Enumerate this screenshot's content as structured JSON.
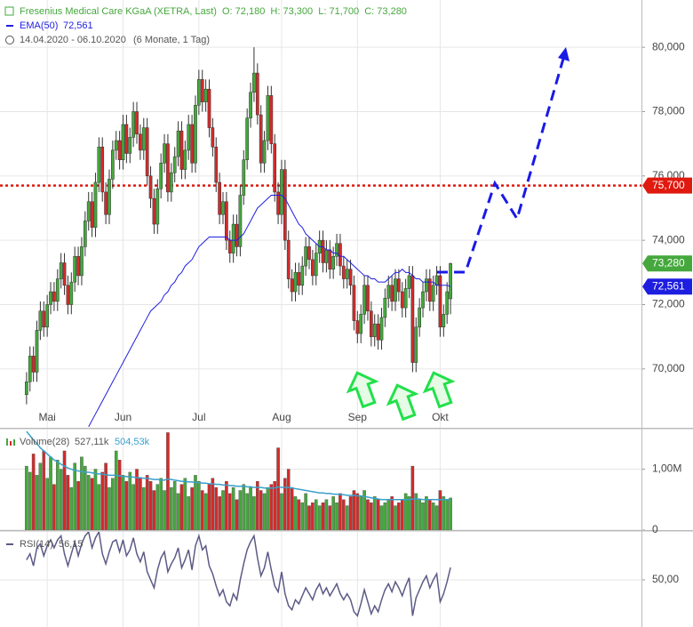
{
  "chart_data": [
    {
      "type": "candlestick",
      "title": "Fresenius Medical Care KGaA (XETRA, Last)",
      "ohlc_summary": "O: 72,180  H: 73,300  L: 71,700  C: 73,280",
      "period": "14.04.2020 - 06.10.2020",
      "period_note": "(6 Monate, 1 Tag)",
      "xlim": [
        -7.7,
        178.4
      ],
      "xticks": [
        {
          "value": 6,
          "label": "Mai"
        },
        {
          "value": 28,
          "label": "Jun"
        },
        {
          "value": 50,
          "label": "Jul"
        },
        {
          "value": 74,
          "label": "Aug"
        },
        {
          "value": 96,
          "label": "Sep"
        },
        {
          "value": 120,
          "label": "Okt"
        }
      ],
      "ylim": [
        68.17,
        81.47
      ],
      "yticks": [
        {
          "value": 70,
          "label": "70,000"
        },
        {
          "value": 72,
          "label": "72,000"
        },
        {
          "value": 74,
          "label": "74,000"
        },
        {
          "value": 76,
          "label": "76,000"
        },
        {
          "value": 78,
          "label": "78,000"
        },
        {
          "value": 80,
          "label": "80,000"
        }
      ],
      "grid": true,
      "up_color": "#45a83c",
      "down_color": "#d42a2a",
      "close_label": "73,280",
      "open": [
        69.2,
        69.6,
        70.4,
        69.9,
        71.2,
        71.8,
        71.3,
        72.0,
        72.4,
        72.1,
        72.8,
        73.3,
        72.6,
        72.0,
        72.7,
        73.5,
        72.9,
        73.8,
        74.6,
        75.2,
        74.4,
        75.8,
        76.9,
        75.5,
        74.8,
        75.9,
        76.8,
        77.1,
        76.5,
        77.6,
        76.7,
        77.2,
        78.0,
        77.3,
        76.8,
        77.5,
        76.0,
        75.3,
        74.5,
        75.6,
        76.4,
        77.0,
        75.5,
        76.1,
        76.6,
        77.4,
        76.2,
        76.8,
        77.6,
        76.4,
        78.2,
        79.0,
        78.3,
        78.7,
        77.5,
        76.9,
        75.8,
        74.8,
        75.2,
        74.0,
        73.6,
        74.5,
        73.8,
        75.4,
        76.5,
        77.8,
        78.6,
        79.2,
        77.9,
        76.4,
        77.1,
        78.5,
        77.0,
        75.5,
        74.8,
        76.2,
        74.0,
        72.8,
        72.4,
        73.0,
        72.6,
        73.2,
        73.8,
        73.4,
        72.9,
        73.6,
        74.0,
        73.3,
        73.7,
        73.1,
        73.5,
        73.9,
        73.2,
        72.8,
        73.1,
        72.6,
        71.5,
        71.1,
        71.7,
        72.6,
        71.8,
        71.0,
        71.4,
        70.9,
        71.6,
        72.2,
        72.6,
        72.1,
        72.8,
        72.4,
        71.9,
        72.5,
        72.9,
        70.2,
        71.3,
        71.9,
        72.4,
        72.8,
        72.1,
        72.6,
        72.9,
        71.3,
        71.7,
        72.18
      ],
      "high": [
        69.9,
        70.7,
        70.7,
        71.5,
        72.1,
        72.1,
        72.3,
        72.7,
        72.7,
        73.1,
        73.6,
        73.6,
        72.9,
        73.0,
        73.8,
        73.8,
        74.1,
        74.9,
        75.5,
        75.5,
        76.1,
        77.2,
        77.2,
        75.8,
        76.2,
        77.1,
        77.4,
        77.4,
        77.9,
        77.9,
        77.5,
        78.3,
        78.3,
        77.6,
        77.8,
        77.8,
        76.3,
        75.6,
        75.9,
        76.7,
        77.3,
        77.3,
        76.4,
        76.9,
        77.7,
        77.7,
        77.1,
        77.9,
        77.9,
        78.5,
        79.3,
        79.3,
        79.0,
        79.0,
        77.8,
        77.2,
        76.1,
        75.5,
        75.5,
        74.3,
        74.8,
        74.8,
        75.7,
        76.8,
        78.1,
        78.9,
        80.0,
        79.5,
        78.2,
        77.4,
        78.8,
        78.8,
        77.3,
        75.8,
        76.5,
        76.5,
        74.3,
        73.1,
        73.3,
        73.3,
        73.5,
        74.1,
        74.1,
        73.7,
        73.9,
        74.3,
        74.3,
        74.0,
        74.0,
        73.8,
        74.2,
        74.2,
        73.5,
        73.4,
        73.4,
        72.9,
        71.8,
        72.0,
        72.9,
        72.9,
        72.1,
        71.7,
        71.7,
        71.9,
        72.5,
        72.9,
        72.9,
        73.1,
        73.1,
        72.7,
        72.8,
        73.2,
        73.2,
        71.6,
        72.2,
        72.7,
        73.1,
        73.1,
        72.9,
        73.2,
        73.2,
        72.0,
        72.7,
        73.3
      ],
      "low": [
        68.9,
        69.3,
        69.6,
        69.6,
        70.9,
        71.0,
        71.0,
        71.7,
        71.8,
        71.8,
        72.5,
        72.3,
        71.7,
        71.7,
        72.4,
        72.6,
        72.6,
        73.5,
        74.3,
        74.1,
        74.1,
        75.5,
        75.2,
        74.5,
        74.5,
        75.6,
        76.5,
        76.2,
        76.2,
        76.4,
        76.4,
        76.9,
        77.0,
        76.5,
        76.5,
        75.7,
        75.0,
        74.2,
        74.2,
        75.3,
        76.1,
        75.2,
        75.2,
        75.8,
        76.3,
        75.9,
        75.9,
        76.5,
        76.1,
        76.1,
        77.9,
        78.0,
        78.0,
        77.2,
        76.6,
        75.5,
        74.5,
        74.5,
        73.7,
        73.3,
        73.3,
        73.5,
        73.5,
        75.1,
        76.2,
        77.5,
        78.3,
        77.6,
        76.1,
        76.1,
        76.8,
        76.7,
        75.2,
        74.5,
        74.5,
        73.7,
        72.5,
        72.1,
        72.1,
        72.3,
        72.3,
        72.9,
        73.1,
        72.6,
        72.6,
        73.3,
        73.0,
        73.0,
        72.8,
        72.8,
        73.2,
        72.9,
        72.5,
        72.5,
        72.3,
        71.2,
        70.8,
        70.8,
        71.4,
        71.5,
        70.7,
        70.7,
        70.6,
        70.6,
        71.3,
        71.9,
        71.8,
        71.8,
        72.1,
        71.6,
        71.6,
        72.2,
        69.9,
        69.9,
        71.0,
        71.6,
        72.1,
        71.8,
        71.8,
        72.3,
        71.0,
        71.0,
        71.4,
        71.7
      ],
      "close": [
        69.6,
        70.4,
        69.9,
        71.2,
        71.8,
        71.3,
        72.0,
        72.4,
        72.1,
        72.8,
        73.3,
        72.6,
        72.0,
        72.7,
        73.5,
        72.9,
        73.8,
        74.6,
        75.2,
        74.4,
        75.8,
        76.9,
        75.5,
        74.8,
        75.9,
        76.8,
        77.1,
        76.5,
        77.6,
        76.7,
        77.2,
        78.0,
        77.3,
        76.8,
        77.5,
        76.0,
        75.3,
        74.5,
        75.6,
        76.4,
        77.0,
        75.5,
        76.1,
        76.6,
        77.4,
        76.2,
        76.8,
        77.6,
        76.4,
        78.2,
        79.0,
        78.3,
        78.7,
        77.5,
        76.9,
        75.8,
        74.8,
        75.2,
        74.0,
        73.6,
        74.5,
        73.8,
        75.4,
        76.5,
        77.8,
        78.6,
        79.2,
        77.9,
        76.4,
        77.1,
        78.5,
        77.0,
        75.5,
        74.8,
        76.2,
        74.0,
        72.8,
        72.4,
        73.0,
        72.6,
        73.2,
        73.8,
        73.4,
        72.9,
        73.6,
        74.0,
        73.3,
        73.7,
        73.1,
        73.5,
        73.9,
        73.2,
        72.8,
        73.1,
        72.6,
        71.5,
        71.1,
        71.7,
        72.6,
        71.8,
        71.0,
        71.4,
        70.9,
        71.6,
        72.2,
        72.6,
        72.1,
        72.8,
        72.4,
        71.9,
        72.5,
        72.9,
        70.2,
        71.3,
        71.9,
        72.4,
        72.8,
        72.1,
        72.6,
        72.9,
        71.3,
        71.7,
        72.4,
        73.28
      ],
      "series": [
        {
          "name": "EMA(50)",
          "value_label": "72,561",
          "color": "#1e1ee0",
          "values": [
            null,
            null,
            null,
            null,
            null,
            null,
            null,
            null,
            null,
            null,
            null,
            null,
            null,
            null,
            null,
            null,
            null,
            null,
            68.2,
            68.4,
            68.6,
            68.8,
            69.0,
            69.2,
            69.4,
            69.6,
            69.8,
            70.0,
            70.2,
            70.4,
            70.6,
            70.8,
            71.0,
            71.2,
            71.4,
            71.6,
            71.8,
            71.9,
            72.0,
            72.1,
            72.3,
            72.4,
            72.6,
            72.7,
            72.9,
            73.0,
            73.2,
            73.3,
            73.4,
            73.6,
            73.8,
            73.9,
            74.0,
            74.1,
            74.1,
            74.1,
            74.1,
            74.1,
            74.1,
            74.0,
            74.0,
            74.0,
            74.1,
            74.2,
            74.4,
            74.6,
            74.8,
            75.0,
            75.1,
            75.2,
            75.3,
            75.4,
            75.4,
            75.4,
            75.4,
            75.3,
            75.1,
            74.9,
            74.7,
            74.5,
            74.4,
            74.2,
            74.1,
            74.0,
            73.9,
            73.8,
            73.8,
            73.7,
            73.7,
            73.6,
            73.6,
            73.5,
            73.5,
            73.4,
            73.3,
            73.2,
            73.1,
            73.0,
            72.9,
            72.9,
            72.8,
            72.8,
            72.7,
            72.7,
            72.7,
            72.8,
            72.9,
            73.0,
            73.0,
            73.1,
            73.0,
            73.0,
            72.9,
            72.8,
            72.8,
            72.7,
            72.7,
            72.7,
            72.7,
            72.6,
            72.6,
            72.6,
            72.6,
            72.561
          ]
        }
      ],
      "resistance": {
        "value": 75.7,
        "label": "75,700",
        "color": "#e0190f"
      }
    },
    {
      "type": "bar",
      "name": "Volume(28)",
      "value_label": "527,11k",
      "xlim": [
        -7.7,
        178.4
      ],
      "ylim": [
        0,
        1.65
      ],
      "yticks": [
        0,
        {
          "value": 1,
          "label": "1,00M"
        }
      ],
      "values": [
        1.05,
        0.95,
        1.25,
        0.9,
        1.1,
        1.3,
        0.85,
        1.2,
        0.75,
        1.15,
        1.0,
        1.3,
        0.9,
        0.7,
        1.1,
        0.8,
        1.2,
        1.05,
        0.9,
        0.85,
        1.0,
        0.75,
        0.95,
        1.1,
        0.7,
        0.85,
        1.3,
        1.15,
        0.9,
        0.8,
        0.95,
        0.75,
        1.0,
        0.85,
        0.7,
        0.9,
        0.8,
        0.65,
        0.75,
        0.85,
        0.65,
        1.6,
        0.7,
        0.8,
        0.6,
        0.75,
        0.85,
        0.55,
        0.7,
        0.9,
        0.8,
        0.65,
        0.6,
        0.75,
        0.85,
        0.7,
        0.55,
        0.65,
        0.8,
        0.6,
        0.7,
        0.5,
        0.65,
        0.75,
        0.6,
        0.7,
        0.55,
        0.8,
        0.65,
        0.6,
        0.7,
        0.75,
        0.8,
        1.35,
        0.6,
        0.85,
        1.0,
        0.7,
        0.55,
        0.5,
        0.45,
        0.6,
        0.4,
        0.45,
        0.5,
        0.4,
        0.45,
        0.5,
        0.4,
        0.55,
        0.45,
        0.6,
        0.5,
        0.4,
        0.55,
        0.65,
        0.6,
        0.55,
        0.65,
        0.5,
        0.45,
        0.55,
        0.5,
        0.4,
        0.45,
        0.5,
        0.55,
        0.4,
        0.45,
        0.5,
        0.6,
        0.55,
        1.05,
        0.6,
        0.5,
        0.45,
        0.55,
        0.5,
        0.45,
        0.4,
        0.65,
        0.55,
        0.5,
        0.52711
      ],
      "series": [
        {
          "value_label": "504,53k",
          "color": "#3a9fca",
          "values": [
            1.62,
            1.55,
            1.48,
            1.42,
            1.35,
            1.3,
            1.25,
            1.2,
            1.15,
            1.12,
            1.08,
            1.05,
            1.02,
            1.0,
            0.98,
            0.97,
            0.96,
            0.95,
            0.95,
            0.94,
            0.93,
            0.92,
            0.92,
            0.91,
            0.9,
            0.9,
            0.9,
            0.89,
            0.88,
            0.88,
            0.87,
            0.87,
            0.86,
            0.86,
            0.85,
            0.85,
            0.84,
            0.83,
            0.83,
            0.82,
            0.82,
            0.84,
            0.83,
            0.82,
            0.81,
            0.8,
            0.8,
            0.79,
            0.79,
            0.78,
            0.78,
            0.77,
            0.77,
            0.76,
            0.76,
            0.75,
            0.75,
            0.74,
            0.74,
            0.73,
            0.73,
            0.72,
            0.72,
            0.72,
            0.71,
            0.71,
            0.7,
            0.7,
            0.7,
            0.69,
            0.69,
            0.69,
            0.69,
            0.71,
            0.7,
            0.7,
            0.7,
            0.69,
            0.68,
            0.67,
            0.66,
            0.65,
            0.64,
            0.63,
            0.62,
            0.61,
            0.61,
            0.6,
            0.6,
            0.59,
            0.59,
            0.58,
            0.58,
            0.57,
            0.57,
            0.57,
            0.56,
            0.56,
            0.55,
            0.54,
            0.53,
            0.52,
            0.51,
            0.5,
            0.5,
            0.5,
            0.5,
            0.5,
            0.5,
            0.5,
            0.5,
            0.5,
            0.51,
            0.51,
            0.51,
            0.5,
            0.5,
            0.5,
            0.5,
            0.5,
            0.5,
            0.5,
            0.5,
            0.50453
          ]
        }
      ]
    },
    {
      "type": "line",
      "xlim": [
        -7.7,
        178.4
      ],
      "ylim": [
        26.4,
        74
      ],
      "yticks": [
        {
          "value": 50,
          "label": "50,00"
        }
      ],
      "series": [
        {
          "name": "RSI(14)",
          "value_label": "56,15",
          "color": "#5c5a86",
          "values": [
            60,
            63,
            57,
            66,
            68,
            62,
            67,
            70,
            66,
            70,
            72,
            63,
            57,
            63,
            69,
            62,
            68,
            72,
            74,
            66,
            71,
            74,
            63,
            58,
            64,
            69,
            70,
            64,
            70,
            62,
            65,
            71,
            63,
            59,
            64,
            54,
            50,
            46,
            55,
            61,
            64,
            54,
            58,
            61,
            66,
            56,
            60,
            65,
            55,
            67,
            72,
            65,
            67,
            57,
            53,
            47,
            42,
            45,
            39,
            37,
            43,
            40,
            50,
            58,
            65,
            69,
            72,
            61,
            52,
            56,
            64,
            55,
            47,
            44,
            54,
            43,
            37,
            35,
            40,
            38,
            42,
            46,
            43,
            40,
            45,
            48,
            43,
            46,
            42,
            45,
            48,
            43,
            40,
            43,
            40,
            34,
            32,
            38,
            45,
            39,
            33,
            37,
            34,
            40,
            45,
            48,
            44,
            49,
            46,
            42,
            47,
            51,
            32,
            41,
            45,
            49,
            52,
            46,
            50,
            53,
            39,
            43,
            49,
            56.15
          ]
        }
      ]
    }
  ]
}
